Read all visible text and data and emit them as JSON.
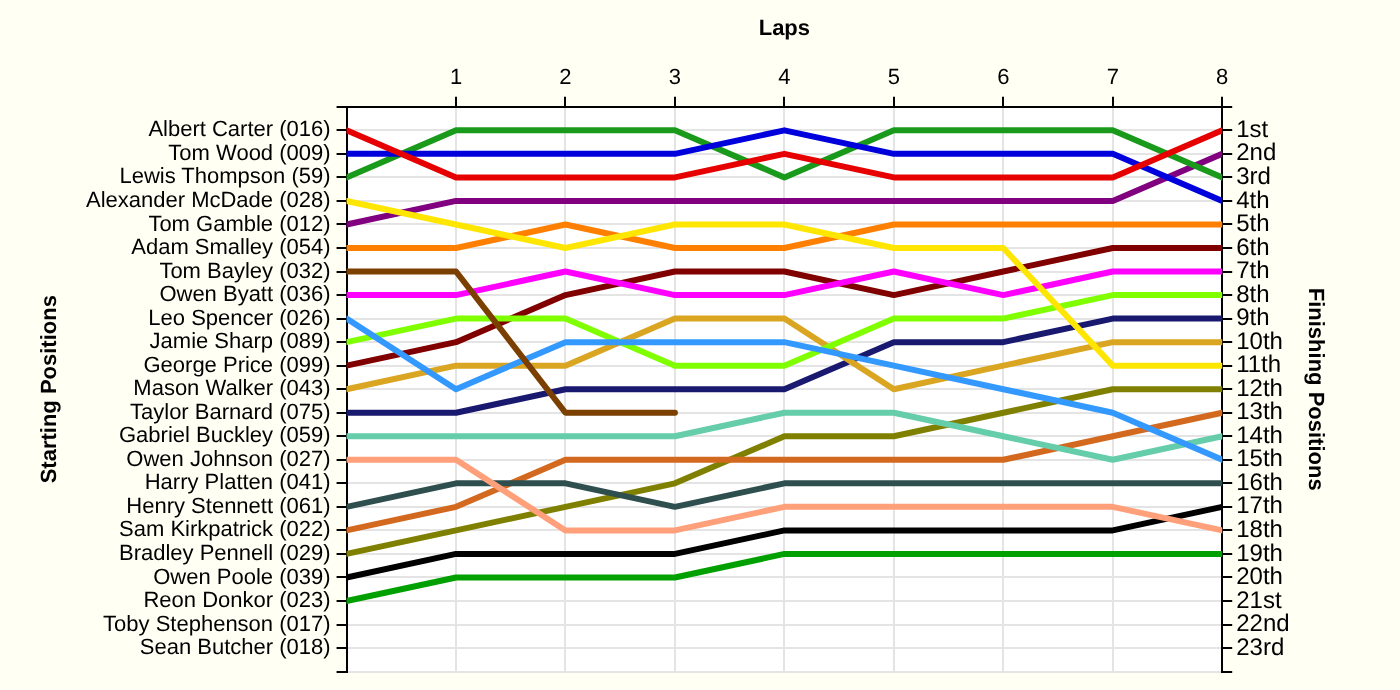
{
  "chart_data": {
    "type": "line",
    "xlabel": "Laps",
    "ylabel": "Finishing Positions",
    "x": [
      0,
      1,
      2,
      3,
      4,
      5,
      6,
      7,
      8
    ],
    "xlim": [
      0,
      8
    ],
    "xticks": [
      1,
      2,
      3,
      4,
      5,
      6,
      7,
      8
    ],
    "annotations": [
      "Starting Positions",
      "Albert Carter (016)",
      "Tom Wood (009)",
      "Lewis Thompson (59)",
      "Alexander McDade (028)",
      "Tom Gamble (012)",
      "Adam Smalley (054)",
      "Tom Bayley (032)",
      "Owen Byatt (036)",
      "Leo Spencer (026)",
      "Jamie Sharp (089)",
      "George Price (099)",
      "Mason Walker (043)",
      "Taylor Barnard (075)",
      "Gabriel Buckley (059)",
      "Owen Johnson (027)",
      "Harry Platten (041)",
      "Henry Stennett (061)",
      "Sam Kirkpatrick (022)",
      "Bradley Pennell (029)",
      "Owen Poole (039)",
      "Reon Donkor (023)",
      "Toby Stephenson (017)",
      "Sean Butcher (018)"
    ],
    "ylim": [
      24,
      0
    ],
    "yticks": [
      {
        "value": 0,
        "label": null
      },
      {
        "value": 1,
        "label": "1st"
      },
      {
        "value": 2,
        "label": "2nd"
      },
      {
        "value": 3,
        "label": "3rd"
      },
      {
        "value": 4,
        "label": "4th"
      },
      {
        "value": 5,
        "label": "5th"
      },
      {
        "value": 6,
        "label": "6th"
      },
      {
        "value": 7,
        "label": "7th"
      },
      {
        "value": 8,
        "label": "8th"
      },
      {
        "value": 9,
        "label": "9th"
      },
      {
        "value": 10,
        "label": "10th"
      },
      {
        "value": 11,
        "label": "11th"
      },
      {
        "value": 12,
        "label": "12th"
      },
      {
        "value": 13,
        "label": "13th"
      },
      {
        "value": 14,
        "label": "14th"
      },
      {
        "value": 15,
        "label": "15th"
      },
      {
        "value": 16,
        "label": "16th"
      },
      {
        "value": 17,
        "label": "17th"
      },
      {
        "value": 18,
        "label": "18th"
      },
      {
        "value": 19,
        "label": "19th"
      },
      {
        "value": 20,
        "label": "20th"
      },
      {
        "value": 21,
        "label": "21st"
      },
      {
        "value": 22,
        "label": "22nd"
      },
      {
        "value": 23,
        "label": "23rd"
      },
      {
        "value": 24,
        "label": null
      }
    ],
    "grid": true,
    "legend": false,
    "marker": "none",
    "line_style": "solid",
    "series": [
      {
        "color": "#e60000",
        "values": [
          1,
          3,
          3,
          3,
          2,
          3,
          3,
          3,
          1
        ]
      },
      {
        "color": "#0000dd",
        "values": [
          2,
          2,
          2,
          2,
          1,
          2,
          2,
          2,
          4
        ]
      },
      {
        "color": "#1a9a1a",
        "values": [
          3,
          1,
          1,
          1,
          3,
          1,
          1,
          1,
          3
        ]
      },
      {
        "color": "#ffe600",
        "values": [
          4,
          5,
          6,
          5,
          5,
          6,
          6,
          11,
          11
        ]
      },
      {
        "color": "#800080",
        "values": [
          5,
          4,
          4,
          4,
          4,
          4,
          4,
          4,
          2
        ]
      },
      {
        "color": "#ff8000",
        "values": [
          6,
          6,
          5,
          6,
          6,
          5,
          5,
          5,
          5
        ]
      },
      {
        "color": "#7b3f00",
        "values": [
          7,
          7,
          13,
          13,
          null,
          null,
          null,
          null,
          null
        ]
      },
      {
        "color": "#ff00ff",
        "values": [
          8,
          8,
          7,
          8,
          8,
          7,
          8,
          7,
          7
        ]
      },
      {
        "color": "#3399ff",
        "values": [
          9,
          12,
          10,
          10,
          10,
          11,
          12,
          13,
          15
        ]
      },
      {
        "color": "#80ff00",
        "values": [
          10,
          9,
          9,
          11,
          11,
          9,
          9,
          8,
          8
        ]
      },
      {
        "color": "#800000",
        "values": [
          11,
          10,
          8,
          7,
          7,
          8,
          7,
          6,
          6
        ]
      },
      {
        "color": "#daa520",
        "values": [
          12,
          11,
          11,
          9,
          9,
          12,
          11,
          10,
          10
        ]
      },
      {
        "color": "#191970",
        "values": [
          13,
          13,
          12,
          12,
          12,
          10,
          10,
          9,
          9
        ]
      },
      {
        "color": "#66cdaa",
        "values": [
          14,
          14,
          14,
          14,
          13,
          13,
          14,
          15,
          14
        ]
      },
      {
        "color": "#ffa07a",
        "values": [
          15,
          15,
          18,
          18,
          17,
          17,
          17,
          17,
          18
        ]
      },
      {
        "color": "#2f4f4f",
        "values": [
          17,
          16,
          16,
          17,
          16,
          16,
          16,
          16,
          16
        ]
      },
      {
        "color": "#d2691e",
        "values": [
          18,
          17,
          15,
          15,
          15,
          15,
          15,
          14,
          13
        ]
      },
      {
        "color": "#808000",
        "values": [
          19,
          18,
          17,
          16,
          14,
          14,
          13,
          12,
          12
        ]
      },
      {
        "color": "#000000",
        "values": [
          20,
          19,
          19,
          19,
          18,
          18,
          18,
          18,
          17
        ]
      },
      {
        "color": "#00a000",
        "values": [
          21,
          20,
          20,
          20,
          19,
          19,
          19,
          19,
          19
        ]
      }
    ]
  }
}
